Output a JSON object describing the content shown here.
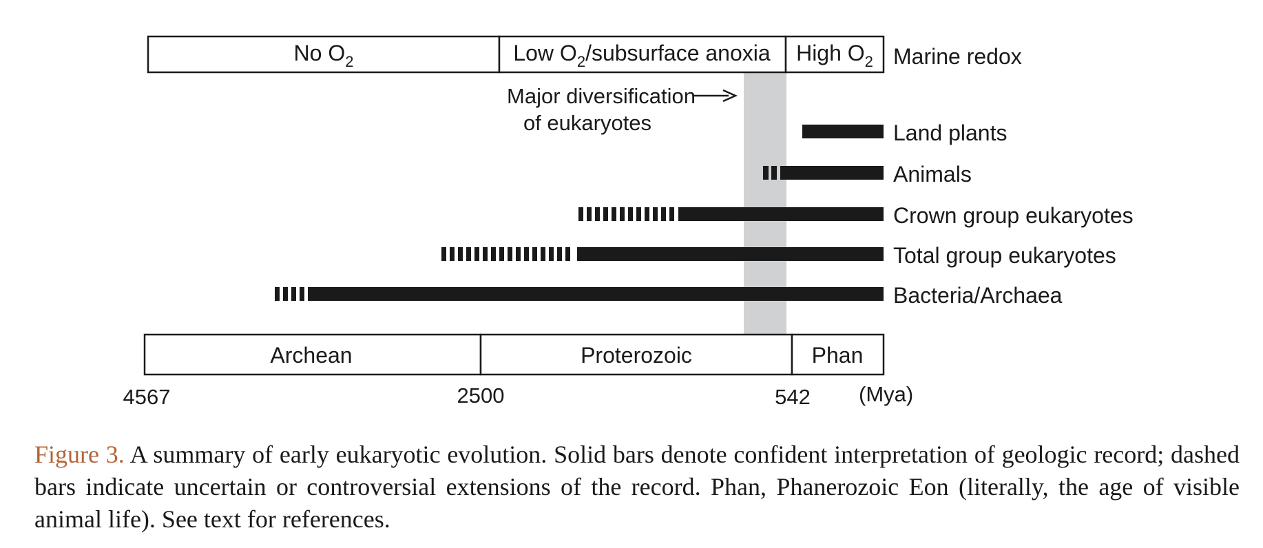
{
  "marine_redox": {
    "label": "Marine redox",
    "zones": [
      {
        "label": "No O",
        "sub": "2",
        "tail": ""
      },
      {
        "label": "Low O",
        "sub": "2",
        "tail": "/subsurface anoxia"
      },
      {
        "label": "High O",
        "sub": "2",
        "tail": ""
      }
    ]
  },
  "annotation": {
    "line1": "Major diversification",
    "line2": "of eukaryotes"
  },
  "lineages": [
    {
      "label": "Land plants"
    },
    {
      "label": "Animals"
    },
    {
      "label": "Crown group eukaryotes"
    },
    {
      "label": "Total group eukaryotes"
    },
    {
      "label": "Bacteria/Archaea"
    }
  ],
  "eons": [
    {
      "label": "Archean"
    },
    {
      "label": "Proterozoic"
    },
    {
      "label": "Phan"
    }
  ],
  "time_axis": {
    "ticks": [
      "4567",
      "2500",
      "542"
    ],
    "unit": "(Mya)"
  },
  "caption": {
    "lead": "Figure 3.",
    "text": " A summary of early eukaryotic evolution. Solid bars denote confident interpretation of geologic record; dashed bars indicate uncertain or controversial extensions of the record. Phan, Phanerozoic Eon (literally, the age of visible animal life). See text for references."
  },
  "colors": {
    "bar": "#1a1a1a",
    "highlight": "#d0d1d3",
    "caption_lead": "#b5653a"
  }
}
